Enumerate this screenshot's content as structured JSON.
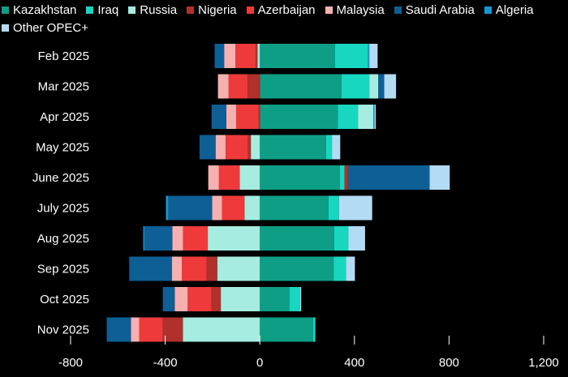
{
  "chart_data": {
    "type": "bar",
    "orientation": "horizontal",
    "stacked": true,
    "title": "",
    "xlabel": "",
    "ylabel": "",
    "xlim": [
      -800,
      1200
    ],
    "xticks": [
      -800,
      -400,
      0,
      400,
      800,
      1200
    ],
    "xtick_labels": [
      "-800",
      "-400",
      "0",
      "400",
      "800",
      "1,200"
    ],
    "grid": false,
    "legend_position": "top-left",
    "categories": [
      "Feb 2025",
      "Mar 2025",
      "Apr 2025",
      "May 2025",
      "June 2025",
      "July 2025",
      "Aug 2025",
      "Sep 2025",
      "Oct 2025",
      "Nov 2025"
    ],
    "series": [
      {
        "name": "Kazakhstan",
        "color": "#0e9e86",
        "values": [
          318,
          345,
          330,
          280,
          338,
          290,
          315,
          312,
          125,
          225
        ]
      },
      {
        "name": "Iraq",
        "color": "#17d7c0",
        "values": [
          140,
          118,
          85,
          25,
          20,
          45,
          60,
          52,
          45,
          10
        ]
      },
      {
        "name": "Russia",
        "color": "#a6ece1",
        "values": [
          -10,
          38,
          65,
          -38,
          -85,
          -65,
          -220,
          -180,
          -165,
          -325
        ]
      },
      {
        "name": "Nigeria",
        "color": "#b0302b",
        "values": [
          -8,
          -52,
          -5,
          -12,
          15,
          0,
          0,
          -45,
          -40,
          -85
        ]
      },
      {
        "name": "Azerbaijan",
        "color": "#ee3a3a",
        "values": [
          -85,
          -80,
          -95,
          -95,
          -88,
          -95,
          -105,
          -105,
          -100,
          -100
        ]
      },
      {
        "name": "Malaysia",
        "color": "#f7b0b0",
        "values": [
          -48,
          -45,
          -42,
          -42,
          -45,
          -42,
          -45,
          -42,
          -55,
          -35
        ]
      },
      {
        "name": "Saudi Arabia",
        "color": "#0d5f96",
        "values": [
          -40,
          25,
          -62,
          -68,
          345,
          -185,
          -118,
          -180,
          -50,
          -102
        ]
      },
      {
        "name": "Algeria",
        "color": "#1696d2",
        "values": [
          5,
          0,
          5,
          0,
          0,
          -10,
          -5,
          0,
          0,
          0
        ]
      },
      {
        "name": "Other OPEC+",
        "color": "#b3dbf4",
        "values": [
          35,
          50,
          5,
          35,
          85,
          140,
          70,
          38,
          5,
          0
        ]
      }
    ]
  }
}
